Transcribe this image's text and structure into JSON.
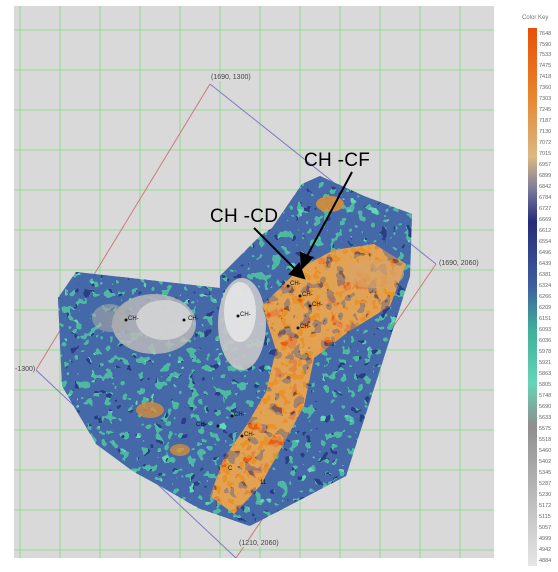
{
  "map": {
    "corner_labels": {
      "top": "(1690, 1300)",
      "right": "(1690, 2060)",
      "bottom": "(1210, 2060)",
      "left": "-1300)"
    },
    "callouts": {
      "cf": "CH -CF",
      "cd": "CH -CD"
    },
    "well_tags": [
      "CH-",
      "CH-",
      "CH-",
      "CH-",
      "CH-",
      "CH-",
      "CH-",
      "CH-",
      "CH-",
      "CH-",
      "C",
      "11"
    ]
  },
  "legend": {
    "title": "Color Key",
    "values": [
      "7648",
      "7590",
      "7533",
      "7475",
      "7418",
      "7360",
      "7303",
      "7245",
      "7187",
      "7130",
      "7072",
      "7015",
      "6957",
      "6899",
      "6842",
      "6784",
      "6727",
      "6669",
      "6612",
      "6554",
      "6496",
      "6439",
      "6381",
      "6324",
      "6266",
      "6209",
      "6151",
      "6093",
      "6036",
      "5978",
      "5921",
      "5863",
      "5805",
      "5748",
      "5690",
      "5633",
      "5575",
      "5518",
      "5460",
      "5402",
      "5345",
      "5287",
      "5230",
      "5172",
      "5115",
      "5057",
      "4999",
      "4942",
      "4884"
    ],
    "colors": {
      "orange_high": "#e8600c",
      "orange_mid": "#e8922c",
      "tan": "#d9b984",
      "navy": "#262b7a",
      "blue": "#3e5f9e",
      "teal": "#3fae9a",
      "aqua": "#66d4b6",
      "gray": "#8e8e8e",
      "light_gray": "#d4d4d4"
    }
  }
}
